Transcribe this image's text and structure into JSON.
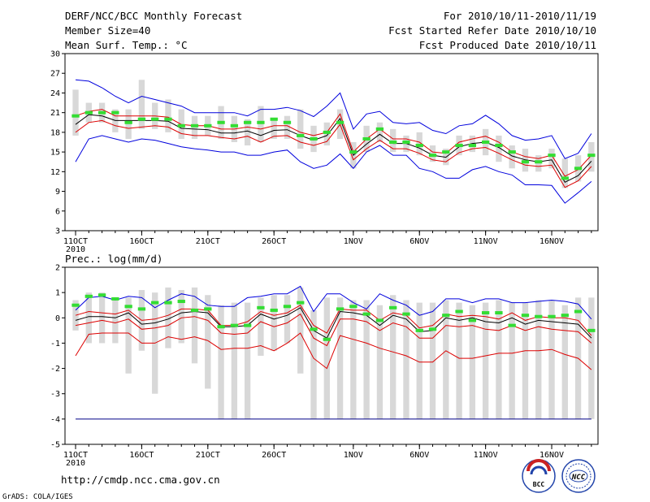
{
  "header": {
    "line1_left": "DERF/NCC/BCC Monthly Forecast",
    "line2_left": "Member Size=40",
    "line3_left": "Mean Surf. Temp.: °C",
    "line1_right": "For 2010/10/11-2010/11/19",
    "line2_right": "Fcst Started Refer Date 2010/10/10",
    "line3_right": "Fcst Produced Date 2010/10/11"
  },
  "footer": {
    "url": "http://cmdp.ncc.cma.gov.cn",
    "grads": "GrADS: COLA/IGES",
    "logo_bcc": "BCC",
    "logo_ncc": "NCC"
  },
  "colors": {
    "envelope": "#0000dd",
    "spread": "#dd0000",
    "mean": "#000000",
    "box": "#d8d8d8",
    "obs": "#33dd33",
    "floor": "#000088"
  },
  "chart_data": [
    {
      "type": "box-ensemble",
      "name": "temperature",
      "title": "Mean Surf. Temp.: °C",
      "ylim": [
        3,
        30
      ],
      "yticks": [
        3,
        6,
        9,
        12,
        15,
        18,
        21,
        24,
        27,
        30
      ],
      "xticks": [
        {
          "day": 1,
          "label": "11OCT",
          "sub": "2010"
        },
        {
          "day": 6,
          "label": "16OCT",
          "sub": ""
        },
        {
          "day": 11,
          "label": "21OCT",
          "sub": ""
        },
        {
          "day": 16,
          "label": "26OCT",
          "sub": ""
        },
        {
          "day": 22,
          "label": "1NOV",
          "sub": ""
        },
        {
          "day": 27,
          "label": "6NOV",
          "sub": ""
        },
        {
          "day": 32,
          "label": "11NOV",
          "sub": ""
        },
        {
          "day": 37,
          "label": "16NOV",
          "sub": ""
        }
      ],
      "days": [
        1,
        2,
        3,
        4,
        5,
        6,
        7,
        8,
        9,
        10,
        11,
        12,
        13,
        14,
        15,
        16,
        17,
        18,
        19,
        20,
        21,
        22,
        23,
        24,
        25,
        26,
        27,
        28,
        29,
        30,
        31,
        32,
        33,
        34,
        35,
        36,
        37,
        38,
        39,
        40
      ],
      "box_low": [
        17.5,
        19.5,
        19.5,
        18,
        17,
        18.5,
        18.5,
        18,
        17,
        17,
        17.5,
        17,
        16.5,
        16,
        16.5,
        17,
        17,
        15.5,
        15,
        16,
        17,
        12.5,
        15,
        16.5,
        15,
        15,
        14.5,
        13.5,
        13,
        14.5,
        15,
        14.5,
        13.5,
        12.5,
        12,
        12,
        12.5,
        9.5,
        10.5,
        12
      ],
      "box_high": [
        24.5,
        22.5,
        22.5,
        21.5,
        21.5,
        26,
        22.5,
        23,
        21.5,
        20.5,
        20.5,
        22,
        20.5,
        20,
        22,
        20,
        20.5,
        21.5,
        19,
        19.5,
        21.5,
        16.5,
        19,
        19.5,
        18.5,
        17.5,
        18,
        16,
        15.5,
        17.5,
        17.5,
        18.5,
        17.5,
        16,
        15.5,
        14.5,
        15.5,
        14,
        14.5,
        16.5
      ],
      "series": [
        {
          "name": "max",
          "color": "#0000dd",
          "values": [
            26,
            25.8,
            24.8,
            23.5,
            22.5,
            23.5,
            23,
            22.5,
            22,
            21,
            21,
            21,
            21,
            20.5,
            21.5,
            21.5,
            21.8,
            21.3,
            20.4,
            22,
            24,
            18.5,
            20.8,
            21.2,
            19.5,
            19.3,
            19.5,
            18.3,
            17.8,
            19,
            19.3,
            20.6,
            19.3,
            17.5,
            16.8,
            17,
            17.5,
            14,
            14.8,
            17.8
          ]
        },
        {
          "name": "upper",
          "color": "#dd0000",
          "values": [
            20.5,
            21.2,
            21.5,
            20.5,
            20.5,
            20.5,
            20.5,
            20.3,
            19.2,
            19,
            19,
            18.5,
            18.5,
            18.8,
            18.5,
            19,
            19,
            18,
            17.5,
            18,
            20.8,
            15,
            17,
            18.5,
            17,
            17,
            16.5,
            15,
            14.8,
            16.5,
            17,
            17.4,
            16.5,
            15,
            14.3,
            14,
            14.5,
            11.3,
            12.3,
            14.5
          ]
        },
        {
          "name": "mean",
          "color": "#000000",
          "values": [
            19.2,
            20.7,
            20.5,
            19.8,
            19.8,
            19.8,
            19.8,
            19.7,
            18.6,
            18.5,
            18.4,
            17.9,
            17.9,
            18.2,
            17.5,
            18.3,
            18.4,
            17.5,
            16.8,
            17.5,
            20.1,
            14.5,
            16.2,
            17.7,
            16.3,
            16.3,
            15.6,
            14.5,
            14.2,
            15.8,
            16.3,
            16.5,
            15.7,
            14.4,
            13.8,
            13.5,
            13.8,
            10.4,
            11.4,
            13.6
          ]
        },
        {
          "name": "lower",
          "color": "#dd0000",
          "values": [
            18,
            19.5,
            19.8,
            19,
            18.6,
            18.8,
            19,
            18.8,
            17.8,
            17.5,
            17.5,
            17.2,
            17,
            17.4,
            16.5,
            17.4,
            17.5,
            16.5,
            16,
            16.6,
            19.2,
            13.8,
            15.5,
            16.8,
            15.5,
            15.5,
            14.8,
            13.8,
            13.5,
            14.9,
            15.5,
            15.7,
            14.8,
            13.8,
            13,
            12.8,
            13,
            9.6,
            10.6,
            12.8
          ]
        },
        {
          "name": "min",
          "color": "#0000dd",
          "values": [
            13.5,
            17,
            17.5,
            17,
            16.5,
            17,
            16.8,
            16.3,
            15.8,
            15.5,
            15.3,
            15,
            15,
            14.5,
            14.5,
            15,
            15.3,
            13.5,
            12.5,
            13,
            14.7,
            12.5,
            15,
            16,
            14.5,
            14.5,
            12.5,
            12,
            11,
            11,
            12.3,
            12.8,
            12,
            11.5,
            10,
            10,
            9.9,
            7.2,
            8.8,
            10.5
          ]
        }
      ],
      "obs": [
        20.5,
        21,
        21,
        21,
        19.5,
        20,
        20,
        20,
        19,
        19,
        19,
        19.5,
        19,
        19.5,
        19.5,
        20,
        19.5,
        17.5,
        17,
        18,
        19.5,
        15,
        17,
        18.5,
        16.5,
        16.5,
        16,
        14.5,
        15,
        16,
        16,
        16.5,
        16,
        15,
        13.5,
        13.5,
        14.5,
        11,
        12.5,
        14.5
      ]
    },
    {
      "type": "box-ensemble",
      "name": "precipitation",
      "title": "Prec.: log(mm/d)",
      "ylim": [
        -5,
        2
      ],
      "yticks": [
        -5,
        -4,
        -3,
        -2,
        -1,
        0,
        1,
        2
      ],
      "xticks": [
        {
          "day": 1,
          "label": "11OCT",
          "sub": "2010"
        },
        {
          "day": 6,
          "label": "16OCT",
          "sub": ""
        },
        {
          "day": 11,
          "label": "21OCT",
          "sub": ""
        },
        {
          "day": 16,
          "label": "26OCT",
          "sub": ""
        },
        {
          "day": 22,
          "label": "1NOV",
          "sub": ""
        },
        {
          "day": 27,
          "label": "6NOV",
          "sub": ""
        },
        {
          "day": 32,
          "label": "11NOV",
          "sub": ""
        },
        {
          "day": 37,
          "label": "16NOV",
          "sub": ""
        }
      ],
      "days": [
        1,
        2,
        3,
        4,
        5,
        6,
        7,
        8,
        9,
        10,
        11,
        12,
        13,
        14,
        15,
        16,
        17,
        18,
        19,
        20,
        21,
        22,
        23,
        24,
        25,
        26,
        27,
        28,
        29,
        30,
        31,
        32,
        33,
        34,
        35,
        36,
        37,
        38,
        39,
        40
      ],
      "box_low": [
        -0.5,
        -1,
        -1,
        -1,
        -2.2,
        -1.3,
        -3,
        -1.2,
        -1,
        -1.8,
        -2.8,
        -4,
        -4,
        -4,
        -1.5,
        -1.3,
        -1,
        -2.2,
        -4,
        -4,
        -4,
        -4,
        -4,
        -4,
        -4,
        -4,
        -4,
        -4,
        -4,
        -4,
        -4,
        -4,
        -4,
        -4,
        -4,
        -4,
        -4,
        -4,
        -4,
        -4
      ],
      "box_high": [
        0.7,
        1,
        1,
        0.8,
        0.8,
        1.1,
        1,
        1.2,
        1.1,
        1.2,
        0.9,
        0.5,
        0.6,
        0.6,
        0.8,
        0.9,
        0.9,
        1.2,
        0.3,
        0.8,
        0.8,
        0.7,
        0.7,
        0.5,
        0.9,
        0.7,
        0.6,
        0.6,
        0.7,
        0.6,
        0.5,
        0.6,
        0.7,
        0.6,
        0.6,
        0.7,
        0.7,
        0.5,
        0.8,
        0.8
      ],
      "series": [
        {
          "name": "max",
          "color": "#0000dd",
          "values": [
            0.3,
            0.8,
            0.85,
            0.7,
            0.85,
            0.8,
            0.4,
            0.7,
            0.95,
            0.85,
            0.5,
            0.45,
            0.45,
            0.8,
            0.85,
            0.95,
            0.95,
            1.25,
            0.25,
            0.95,
            0.95,
            0.6,
            0.35,
            0.95,
            0.7,
            0.5,
            0.1,
            0.25,
            0.75,
            0.75,
            0.6,
            0.75,
            0.75,
            0.6,
            0.6,
            0.65,
            0.7,
            0.65,
            0.55,
            -0.05
          ]
        },
        {
          "name": "upper",
          "color": "#dd0000",
          "values": [
            0.1,
            0.25,
            0.2,
            0.15,
            0.3,
            -0.1,
            -0.05,
            0.1,
            0.35,
            0.35,
            0.3,
            -0.3,
            -0.3,
            -0.15,
            0.25,
            0.1,
            0.2,
            0.5,
            -0.3,
            -0.6,
            0.35,
            0.3,
            0.3,
            -0.1,
            0.2,
            0.1,
            -0.4,
            -0.3,
            0.15,
            0.05,
            0.1,
            0.05,
            -0.05,
            0.2,
            -0.1,
            0.05,
            0,
            0,
            -0.1,
            -0.7
          ]
        },
        {
          "name": "mean",
          "color": "#000000",
          "values": [
            -0.1,
            0.05,
            0.05,
            0,
            0.2,
            -0.25,
            -0.2,
            -0.05,
            0.2,
            0.25,
            0.2,
            -0.35,
            -0.35,
            -0.3,
            0.15,
            -0.05,
            0.1,
            0.4,
            -0.5,
            -0.8,
            0.25,
            0.2,
            0.1,
            -0.3,
            0.1,
            -0.05,
            -0.55,
            -0.5,
            0,
            -0.1,
            0,
            -0.15,
            -0.2,
            0,
            -0.25,
            -0.1,
            -0.15,
            -0.2,
            -0.25,
            -0.8
          ]
        },
        {
          "name": "lower",
          "color": "#dd0000",
          "values": [
            -0.3,
            -0.2,
            -0.1,
            -0.2,
            -0.05,
            -0.45,
            -0.4,
            -0.3,
            0,
            0.05,
            -0.1,
            -0.6,
            -0.65,
            -0.6,
            -0.15,
            -0.35,
            -0.2,
            0.15,
            -0.8,
            -1.1,
            -0.05,
            -0.05,
            -0.15,
            -0.5,
            -0.2,
            -0.35,
            -0.8,
            -0.8,
            -0.3,
            -0.35,
            -0.3,
            -0.45,
            -0.5,
            -0.3,
            -0.5,
            -0.35,
            -0.45,
            -0.5,
            -0.55,
            -1
          ]
        },
        {
          "name": "min",
          "color": "#dd0000",
          "values": [
            -1.5,
            -0.65,
            -0.6,
            -0.6,
            -0.6,
            -1,
            -1,
            -0.75,
            -0.85,
            -0.75,
            -0.9,
            -1.25,
            -1.2,
            -1.2,
            -1.1,
            -1.3,
            -1,
            -0.6,
            -1.6,
            -2,
            -0.7,
            -0.85,
            -1,
            -1.2,
            -1.35,
            -1.5,
            -1.75,
            -1.75,
            -1.3,
            -1.6,
            -1.6,
            -1.5,
            -1.4,
            -1.4,
            -1.3,
            -1.3,
            -1.25,
            -1.45,
            -1.6,
            -2.05
          ]
        }
      ],
      "floor_value": -4,
      "obs": [
        0.5,
        0.85,
        0.9,
        0.75,
        0.45,
        0.35,
        0.6,
        0.6,
        0.65,
        0.3,
        0.35,
        -0.35,
        -0.3,
        -0.3,
        0.4,
        0.3,
        0.45,
        0.6,
        -0.45,
        -0.85,
        0.35,
        0.45,
        0.15,
        -0.1,
        0.4,
        0.15,
        -0.5,
        -0.45,
        0.1,
        0.25,
        -0.1,
        0.2,
        0.2,
        -0.3,
        0.1,
        0.05,
        0.05,
        0.1,
        0.25,
        -0.5
      ]
    }
  ]
}
